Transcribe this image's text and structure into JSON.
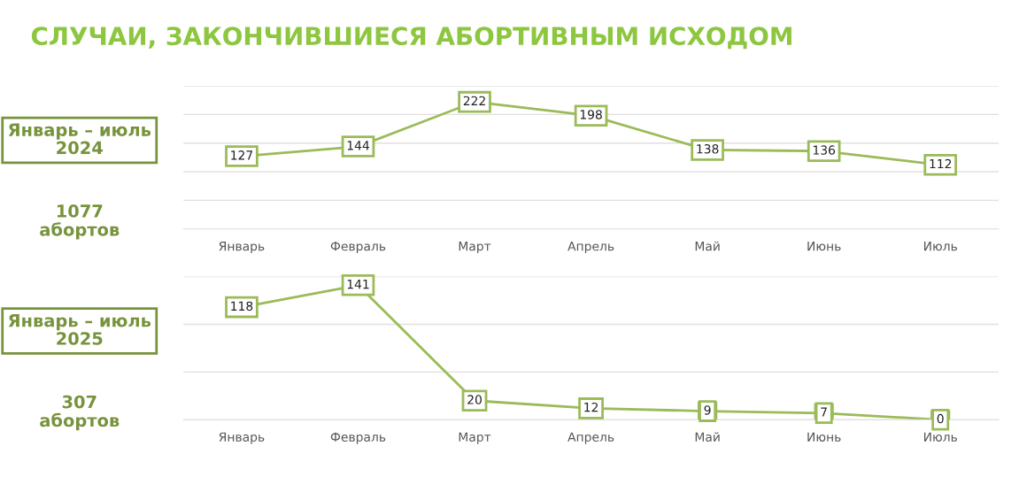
{
  "chart_data": [
    {
      "type": "line",
      "title": "СЛУЧАИ, ЗАКОНЧИВШИЕСЯ АБОРТИВНЫМ ИСХОДОМ",
      "categories": [
        "Январь",
        "Февраль",
        "Март",
        "Апрель",
        "Май",
        "Июнь",
        "Июль"
      ],
      "series": [
        {
          "color": "#9bbb59",
          "values": [
            127,
            144,
            222,
            198,
            138,
            136,
            112
          ]
        }
      ],
      "ylim": [
        0,
        250
      ],
      "yticks": [
        {
          "value": 0,
          "label": null
        },
        {
          "value": 50,
          "label": null
        },
        {
          "value": 100,
          "label": null
        },
        {
          "value": 150,
          "label": null
        },
        {
          "value": 200,
          "label": null
        },
        {
          "value": 250,
          "label": null
        }
      ],
      "grid": "y",
      "tick_labels": "x",
      "marker": "square",
      "line_style": "solid",
      "data_labels": true,
      "annotations": [
        "Январь – июль\n2024",
        "1077\nабортов"
      ]
    },
    {
      "type": "line",
      "categories": [
        "Январь",
        "Февраль",
        "Март",
        "Апрель",
        "Май",
        "Июнь",
        "Июль"
      ],
      "series": [
        {
          "color": "#9bbb59",
          "values": [
            118,
            141,
            20,
            12,
            9,
            7,
            0
          ]
        }
      ],
      "ylim": [
        0,
        150
      ],
      "yticks": [
        {
          "value": 0,
          "label": null
        },
        {
          "value": 50,
          "label": null
        },
        {
          "value": 100,
          "label": null
        },
        {
          "value": 150,
          "label": null
        }
      ],
      "grid": "y",
      "tick_labels": "x",
      "marker": "square",
      "line_style": "solid",
      "data_labels": true,
      "annotations": [
        "Январь – июль\n2025",
        "307\nабортов"
      ]
    }
  ]
}
